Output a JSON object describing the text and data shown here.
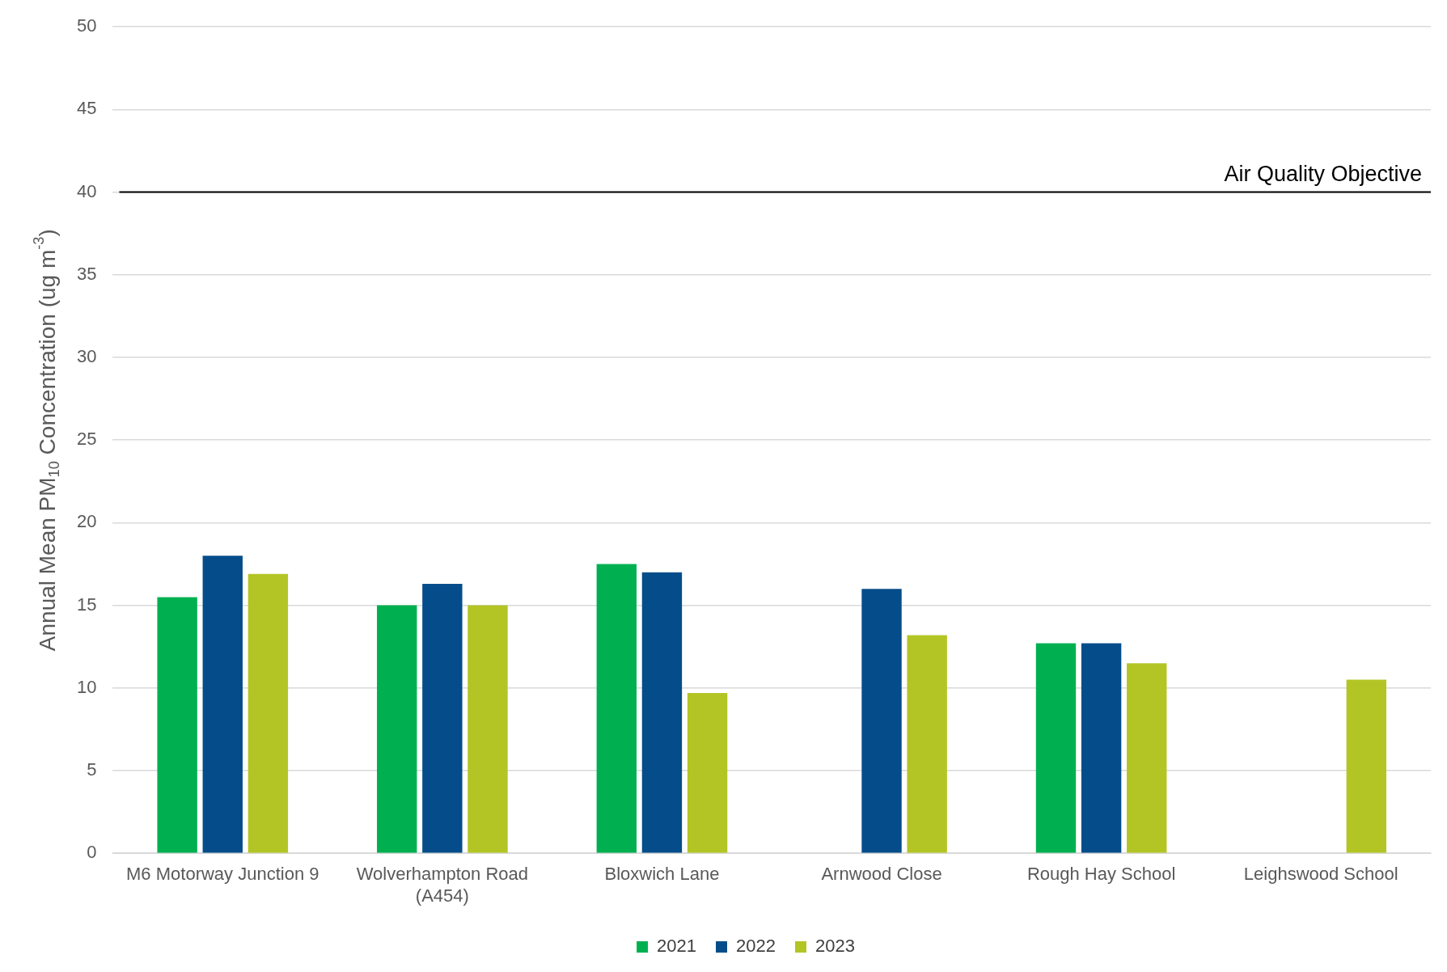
{
  "chart_data": {
    "type": "bar",
    "ylabel": "Annual Mean PM$_{10}$ Concentration (ug m$^{-3}$)",
    "categories": [
      "M6 Motorway Junction 9",
      "Wolverhampton Road (A454)",
      "Bloxwich Lane",
      "Arnwood Close",
      "Rough Hay School",
      "Leighswood School"
    ],
    "series": [
      {
        "name": "2021",
        "color": "#00b050",
        "values": [
          15.5,
          15.0,
          17.5,
          null,
          12.7,
          null
        ]
      },
      {
        "name": "2022",
        "color": "#054d8a",
        "values": [
          18.0,
          16.3,
          17.0,
          16.0,
          12.7,
          null
        ]
      },
      {
        "name": "2023",
        "color": "#b3c525",
        "values": [
          16.9,
          15.0,
          9.7,
          13.2,
          11.5,
          10.5
        ]
      }
    ],
    "ylim": [
      0,
      50
    ],
    "yticks": [
      0,
      5,
      10,
      15,
      20,
      25,
      30,
      35,
      40,
      45,
      50
    ],
    "grid": "y",
    "legend": "bottom",
    "ref_lines": [
      {
        "axis": "y",
        "value": 40,
        "label": "Air Quality Objective",
        "color": "#000000",
        "line_style": "solid"
      }
    ]
  }
}
